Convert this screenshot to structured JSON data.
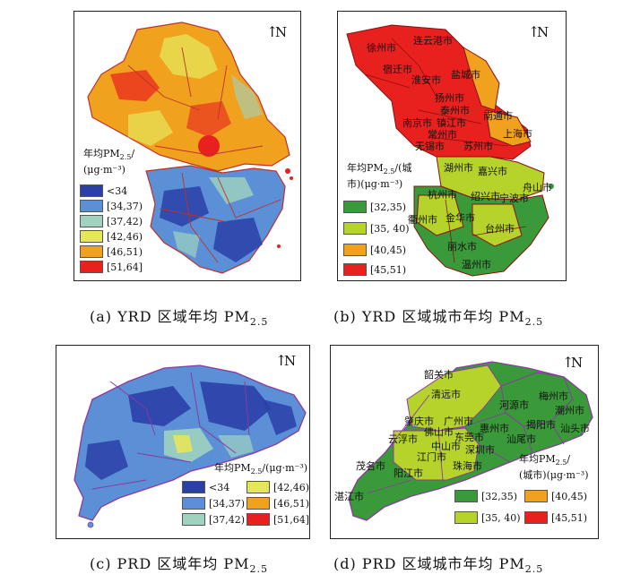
{
  "north_label": "N",
  "colors": {
    "dark_blue": "#2b3fa8",
    "mid_blue": "#5b8fd6",
    "light_teal": "#9fd3c0",
    "yellow_green": "#e6e65a",
    "orange": "#f0a21e",
    "red": "#e8201e",
    "city_green": "#3a9a3a",
    "city_lime": "#b5d32a",
    "city_orange": "#f0a21e",
    "city_red": "#e8201e"
  },
  "panel_a": {
    "legend_title_line1": "年均PM",
    "legend_title_sub": "2.5",
    "legend_title_line1_tail": "/",
    "legend_title_line2": "(μg·m⁻³)",
    "legend": [
      "<34",
      "[34,37)",
      "[37,42)",
      "[42,46)",
      "[46,51)",
      "[51,64]"
    ],
    "caption_prefix": "(a) YRD 区域年均 PM",
    "caption_sub": "2.5"
  },
  "panel_b": {
    "legend_title_line1": "年均PM",
    "legend_title_sub": "2.5",
    "legend_title_line1_tail": "/(城",
    "legend_title_line2": "市)(μg·m⁻³)",
    "legend": [
      "[32,35)",
      "[35, 40)",
      "[40,45)",
      "[45,51)"
    ],
    "cities": [
      "徐州市",
      "连云港市",
      "宿迁市",
      "淮安市",
      "盐城市",
      "扬州市",
      "泰州市",
      "南通市",
      "南京市",
      "镇江市",
      "常州市",
      "无锡市",
      "苏州市",
      "上海市",
      "湖州市",
      "嘉兴市",
      "杭州市",
      "绍兴市",
      "宁波市",
      "舟山市",
      "衢州市",
      "金华市",
      "台州市",
      "丽水市",
      "温州市"
    ],
    "caption_prefix": "(b) YRD 区域城市年均 PM",
    "caption_sub": "2.5"
  },
  "panel_c": {
    "legend_title_line1": "年均PM",
    "legend_title_sub": "2.5",
    "legend_title_line1_tail": "/(μg·m⁻³)",
    "legend": [
      "<34",
      "[34,37)",
      "[37,42)",
      "[42,46)",
      "[46,51)",
      "[51,64]"
    ],
    "caption_prefix": "(c) PRD 区域年均 PM",
    "caption_sub": "2.5"
  },
  "panel_d": {
    "legend_title_line1": "年均PM",
    "legend_title_sub": "2.5",
    "legend_title_line1_tail": "/",
    "legend_title_line2": "(城市)(μg·m⁻³)",
    "legend": [
      "[32,35)",
      "[40,45)",
      "[35, 40)",
      "[45,51)"
    ],
    "cities": [
      "韶关市",
      "清远市",
      "梅州市",
      "河源市",
      "潮州市",
      "肇庆市",
      "广州市",
      "惠州市",
      "揭阳市",
      "汕头市",
      "云浮市",
      "佛山市",
      "东莞市",
      "汕尾市",
      "中山市",
      "深圳市",
      "江门市",
      "珠海市",
      "茂名市",
      "阳江市",
      "湛江市"
    ],
    "caption_prefix": "(d) PRD 区域城市年均 PM",
    "caption_sub": "2.5"
  }
}
